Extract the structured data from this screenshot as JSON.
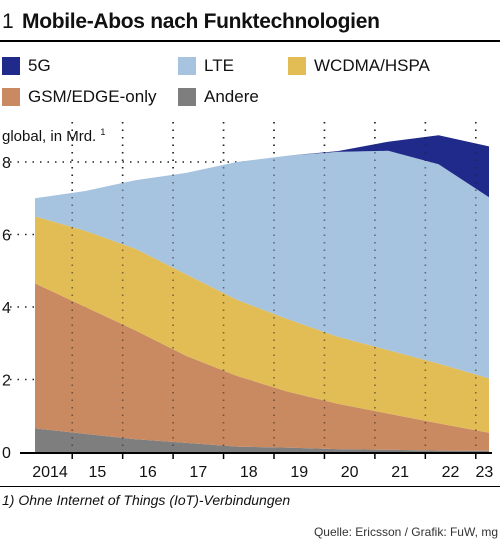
{
  "header": {
    "number": "1",
    "title": "Mobile-Abos nach Funktechnologien"
  },
  "legend": [
    {
      "label": "5G",
      "color": "#1f2a8a"
    },
    {
      "label": "LTE",
      "color": "#a6c3df"
    },
    {
      "label": "WCDMA/HSPA",
      "color": "#e2bd55"
    },
    {
      "label": "GSM/EDGE-only",
      "color": "#c98a62"
    },
    {
      "label": "Andere",
      "color": "#7e7e7e"
    }
  ],
  "unit_label": "global, in Mrd.",
  "unit_footnote_mark": "1",
  "footnote": "1) Ohne Internet of Things (IoT)-Verbindungen",
  "source": "Quelle: Ericsson / Grafik: FuW, mg",
  "chart_data": {
    "type": "area",
    "stacked": true,
    "x": [
      "2014",
      "15",
      "16",
      "17",
      "18",
      "19",
      "20",
      "21",
      "22",
      "23"
    ],
    "ylim": [
      0,
      9
    ],
    "yticks": [
      0,
      2,
      4,
      6,
      8
    ],
    "ylabel": "global, in Mrd.",
    "grid": "dotted vertical and horizontal",
    "series": [
      {
        "name": "Andere",
        "values": [
          0.65,
          0.5,
          0.35,
          0.25,
          0.15,
          0.12,
          0.08,
          0.06,
          0.04,
          0.03
        ]
      },
      {
        "name": "GSM/EDGE-only",
        "values": [
          4.0,
          3.5,
          3.0,
          2.4,
          1.95,
          1.55,
          1.25,
          1.0,
          0.75,
          0.5
        ]
      },
      {
        "name": "WCDMA/HSPA",
        "values": [
          1.85,
          2.1,
          2.25,
          2.25,
          2.1,
          2.0,
          1.85,
          1.75,
          1.65,
          1.5
        ]
      },
      {
        "name": "LTE",
        "values": [
          0.5,
          1.1,
          1.9,
          2.8,
          3.8,
          4.5,
          5.1,
          5.5,
          5.5,
          5.0
        ]
      },
      {
        "name": "5G",
        "values": [
          0,
          0,
          0,
          0,
          0,
          0,
          0.02,
          0.25,
          0.8,
          1.4
        ]
      }
    ]
  }
}
